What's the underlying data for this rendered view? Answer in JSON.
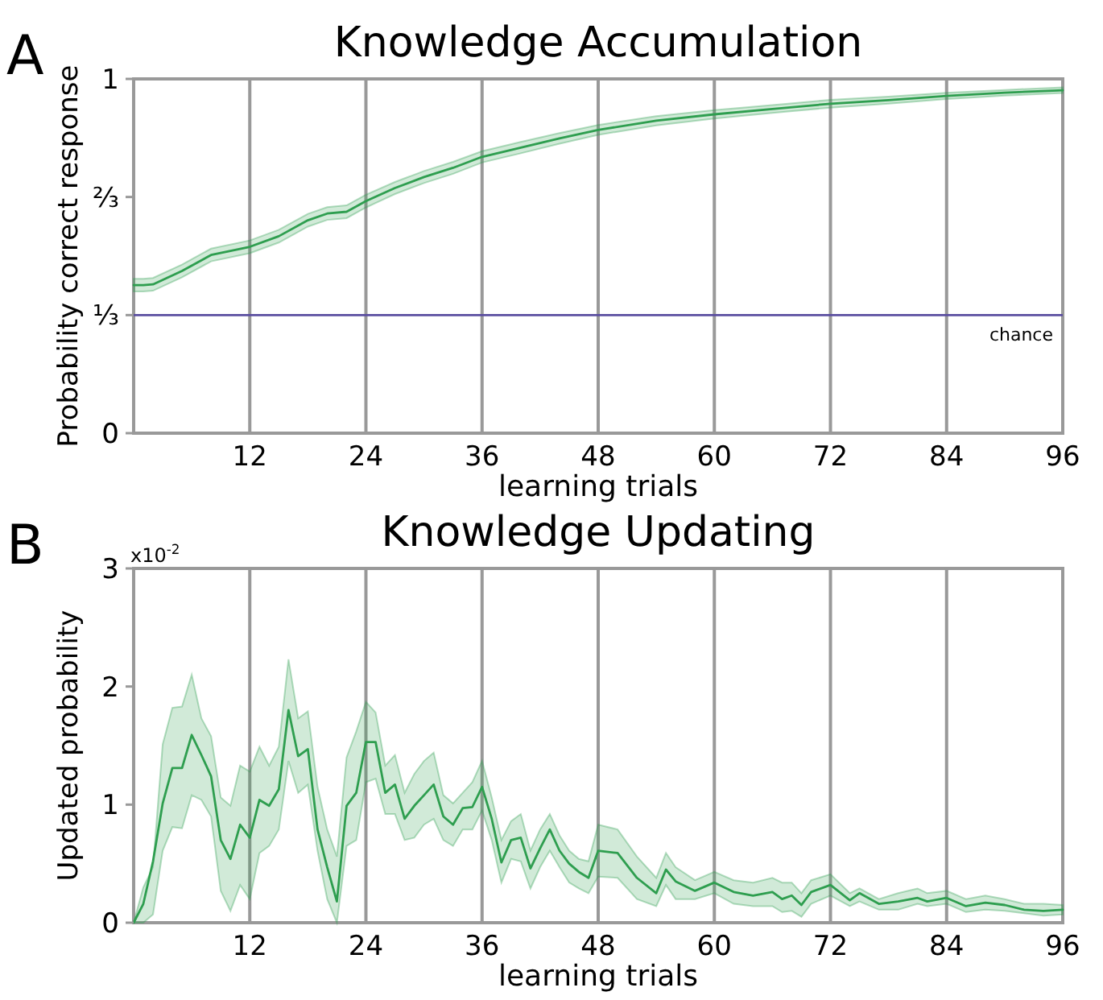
{
  "chart_data": [
    {
      "type": "line",
      "title": "Knowledge Accumulation",
      "xlabel": "learning trials",
      "ylabel": "Probability correct response",
      "annotations": [
        "A"
      ],
      "xlim": [
        0,
        96
      ],
      "xticks": [
        12,
        24,
        36,
        48,
        60,
        72,
        84,
        96
      ],
      "ylim": [
        0,
        1
      ],
      "yticks": [
        0,
        {
          "value": 0.3333,
          "label": "⅓"
        },
        {
          "value": 0.6667,
          "label": "⅔"
        },
        1
      ],
      "grid": "x",
      "ref_lines": [
        {
          "axis": "y",
          "value": 0.3333,
          "label": "chance",
          "color": "#5b4ea0"
        }
      ],
      "series": [
        {
          "color": "#2e9e4f",
          "x": [
            0,
            1,
            2,
            5,
            8,
            12,
            15,
            18,
            20,
            22,
            24,
            27,
            30,
            33,
            36,
            40,
            44,
            48,
            54,
            60,
            66,
            72,
            78,
            84,
            90,
            96
          ],
          "values": [
            0.418,
            0.418,
            0.42,
            0.458,
            0.503,
            0.526,
            0.556,
            0.601,
            0.62,
            0.625,
            0.655,
            0.692,
            0.723,
            0.749,
            0.78,
            0.806,
            0.832,
            0.856,
            0.882,
            0.9,
            0.915,
            0.93,
            0.94,
            0.952,
            0.961,
            0.968
          ],
          "lower": [
            0.4,
            0.4,
            0.402,
            0.44,
            0.485,
            0.508,
            0.538,
            0.583,
            0.602,
            0.607,
            0.637,
            0.675,
            0.706,
            0.732,
            0.764,
            0.79,
            0.817,
            0.842,
            0.869,
            0.888,
            0.904,
            0.919,
            0.93,
            0.943,
            0.953,
            0.96
          ],
          "upper": [
            0.436,
            0.436,
            0.438,
            0.476,
            0.521,
            0.544,
            0.574,
            0.619,
            0.638,
            0.643,
            0.673,
            0.709,
            0.74,
            0.766,
            0.796,
            0.822,
            0.847,
            0.87,
            0.895,
            0.912,
            0.926,
            0.941,
            0.95,
            0.961,
            0.969,
            0.976
          ]
        }
      ]
    },
    {
      "type": "line",
      "title": "Knowledge Updating",
      "xlabel": "learning trials",
      "ylabel": "Updated probability",
      "annotations": [
        "B",
        "x10$^{-2}$"
      ],
      "xlim": [
        0,
        96
      ],
      "xticks": [
        12,
        24,
        36,
        48,
        60,
        72,
        84,
        96
      ],
      "ylim": [
        0,
        3
      ],
      "yticks": [
        0,
        1,
        2,
        3
      ],
      "grid": "x",
      "series": [
        {
          "color": "#2e9e4f",
          "x": [
            0,
            1,
            2,
            3,
            4,
            5,
            6,
            7,
            8,
            9,
            10,
            11,
            12,
            13,
            14,
            15,
            16,
            17,
            18,
            19,
            20,
            21,
            22,
            23,
            24,
            25,
            26,
            27,
            28,
            29,
            30,
            31,
            32,
            33,
            34,
            35,
            36,
            37,
            38,
            39,
            40,
            41,
            42,
            43,
            44,
            45,
            46,
            47,
            48,
            50,
            52,
            54,
            55,
            56,
            58,
            60,
            62,
            64,
            66,
            67,
            68,
            69,
            70,
            72,
            74,
            75,
            77,
            79,
            81,
            82,
            84,
            86,
            88,
            90,
            92,
            94,
            96
          ],
          "values": [
            0,
            0.16,
            0.52,
            1.01,
            1.31,
            1.31,
            1.59,
            1.42,
            1.24,
            0.7,
            0.54,
            0.83,
            0.72,
            1.04,
            0.99,
            1.13,
            1.8,
            1.41,
            1.47,
            0.79,
            0.47,
            0.18,
            0.99,
            1.1,
            1.53,
            1.53,
            1.1,
            1.17,
            0.88,
            0.99,
            1.08,
            1.17,
            0.9,
            0.83,
            0.97,
            0.98,
            1.15,
            0.88,
            0.51,
            0.7,
            0.72,
            0.46,
            0.63,
            0.79,
            0.61,
            0.5,
            0.43,
            0.38,
            0.61,
            0.59,
            0.38,
            0.25,
            0.45,
            0.35,
            0.27,
            0.34,
            0.26,
            0.23,
            0.26,
            0.2,
            0.23,
            0.15,
            0.26,
            0.32,
            0.19,
            0.25,
            0.16,
            0.18,
            0.21,
            0.18,
            0.21,
            0.14,
            0.17,
            0.15,
            0.11,
            0.1,
            0.11
          ],
          "lower": [
            0,
            0,
            0.07,
            0.61,
            0.81,
            0.8,
            1.08,
            1.04,
            0.9,
            0.27,
            0.1,
            0.32,
            0.2,
            0.59,
            0.65,
            0.79,
            1.37,
            1.1,
            1.17,
            0.61,
            0.2,
            0,
            0.65,
            0.7,
            1.19,
            1.22,
            0.92,
            0.92,
            0.7,
            0.72,
            0.83,
            0.88,
            0.7,
            0.65,
            0.79,
            0.79,
            0.95,
            0.7,
            0.34,
            0.54,
            0.52,
            0.29,
            0.47,
            0.61,
            0.47,
            0.34,
            0.29,
            0.25,
            0.39,
            0.38,
            0.2,
            0.14,
            0.32,
            0.2,
            0.2,
            0.25,
            0.16,
            0.14,
            0.14,
            0.09,
            0.1,
            0.05,
            0.16,
            0.23,
            0.14,
            0.18,
            0.11,
            0.11,
            0.16,
            0.14,
            0.16,
            0.09,
            0.11,
            0.1,
            0.08,
            0.06,
            0.07
          ],
          "upper": [
            0,
            0.3,
            0.47,
            1.51,
            1.82,
            1.83,
            2.1,
            1.73,
            1.58,
            1.06,
            0.99,
            1.33,
            1.28,
            1.49,
            1.33,
            1.49,
            2.23,
            1.73,
            1.79,
            1.15,
            0.79,
            0.56,
            1.4,
            1.62,
            1.87,
            1.78,
            1.33,
            1.42,
            1.1,
            1.26,
            1.37,
            1.44,
            1.08,
            1.01,
            1.1,
            1.19,
            1.37,
            1.06,
            0.7,
            0.86,
            0.92,
            0.61,
            0.79,
            0.92,
            0.74,
            0.61,
            0.54,
            0.52,
            0.83,
            0.79,
            0.56,
            0.38,
            0.59,
            0.47,
            0.36,
            0.43,
            0.36,
            0.34,
            0.38,
            0.34,
            0.34,
            0.25,
            0.36,
            0.41,
            0.25,
            0.29,
            0.2,
            0.25,
            0.29,
            0.25,
            0.27,
            0.2,
            0.23,
            0.2,
            0.16,
            0.16,
            0.15
          ]
        }
      ]
    }
  ]
}
